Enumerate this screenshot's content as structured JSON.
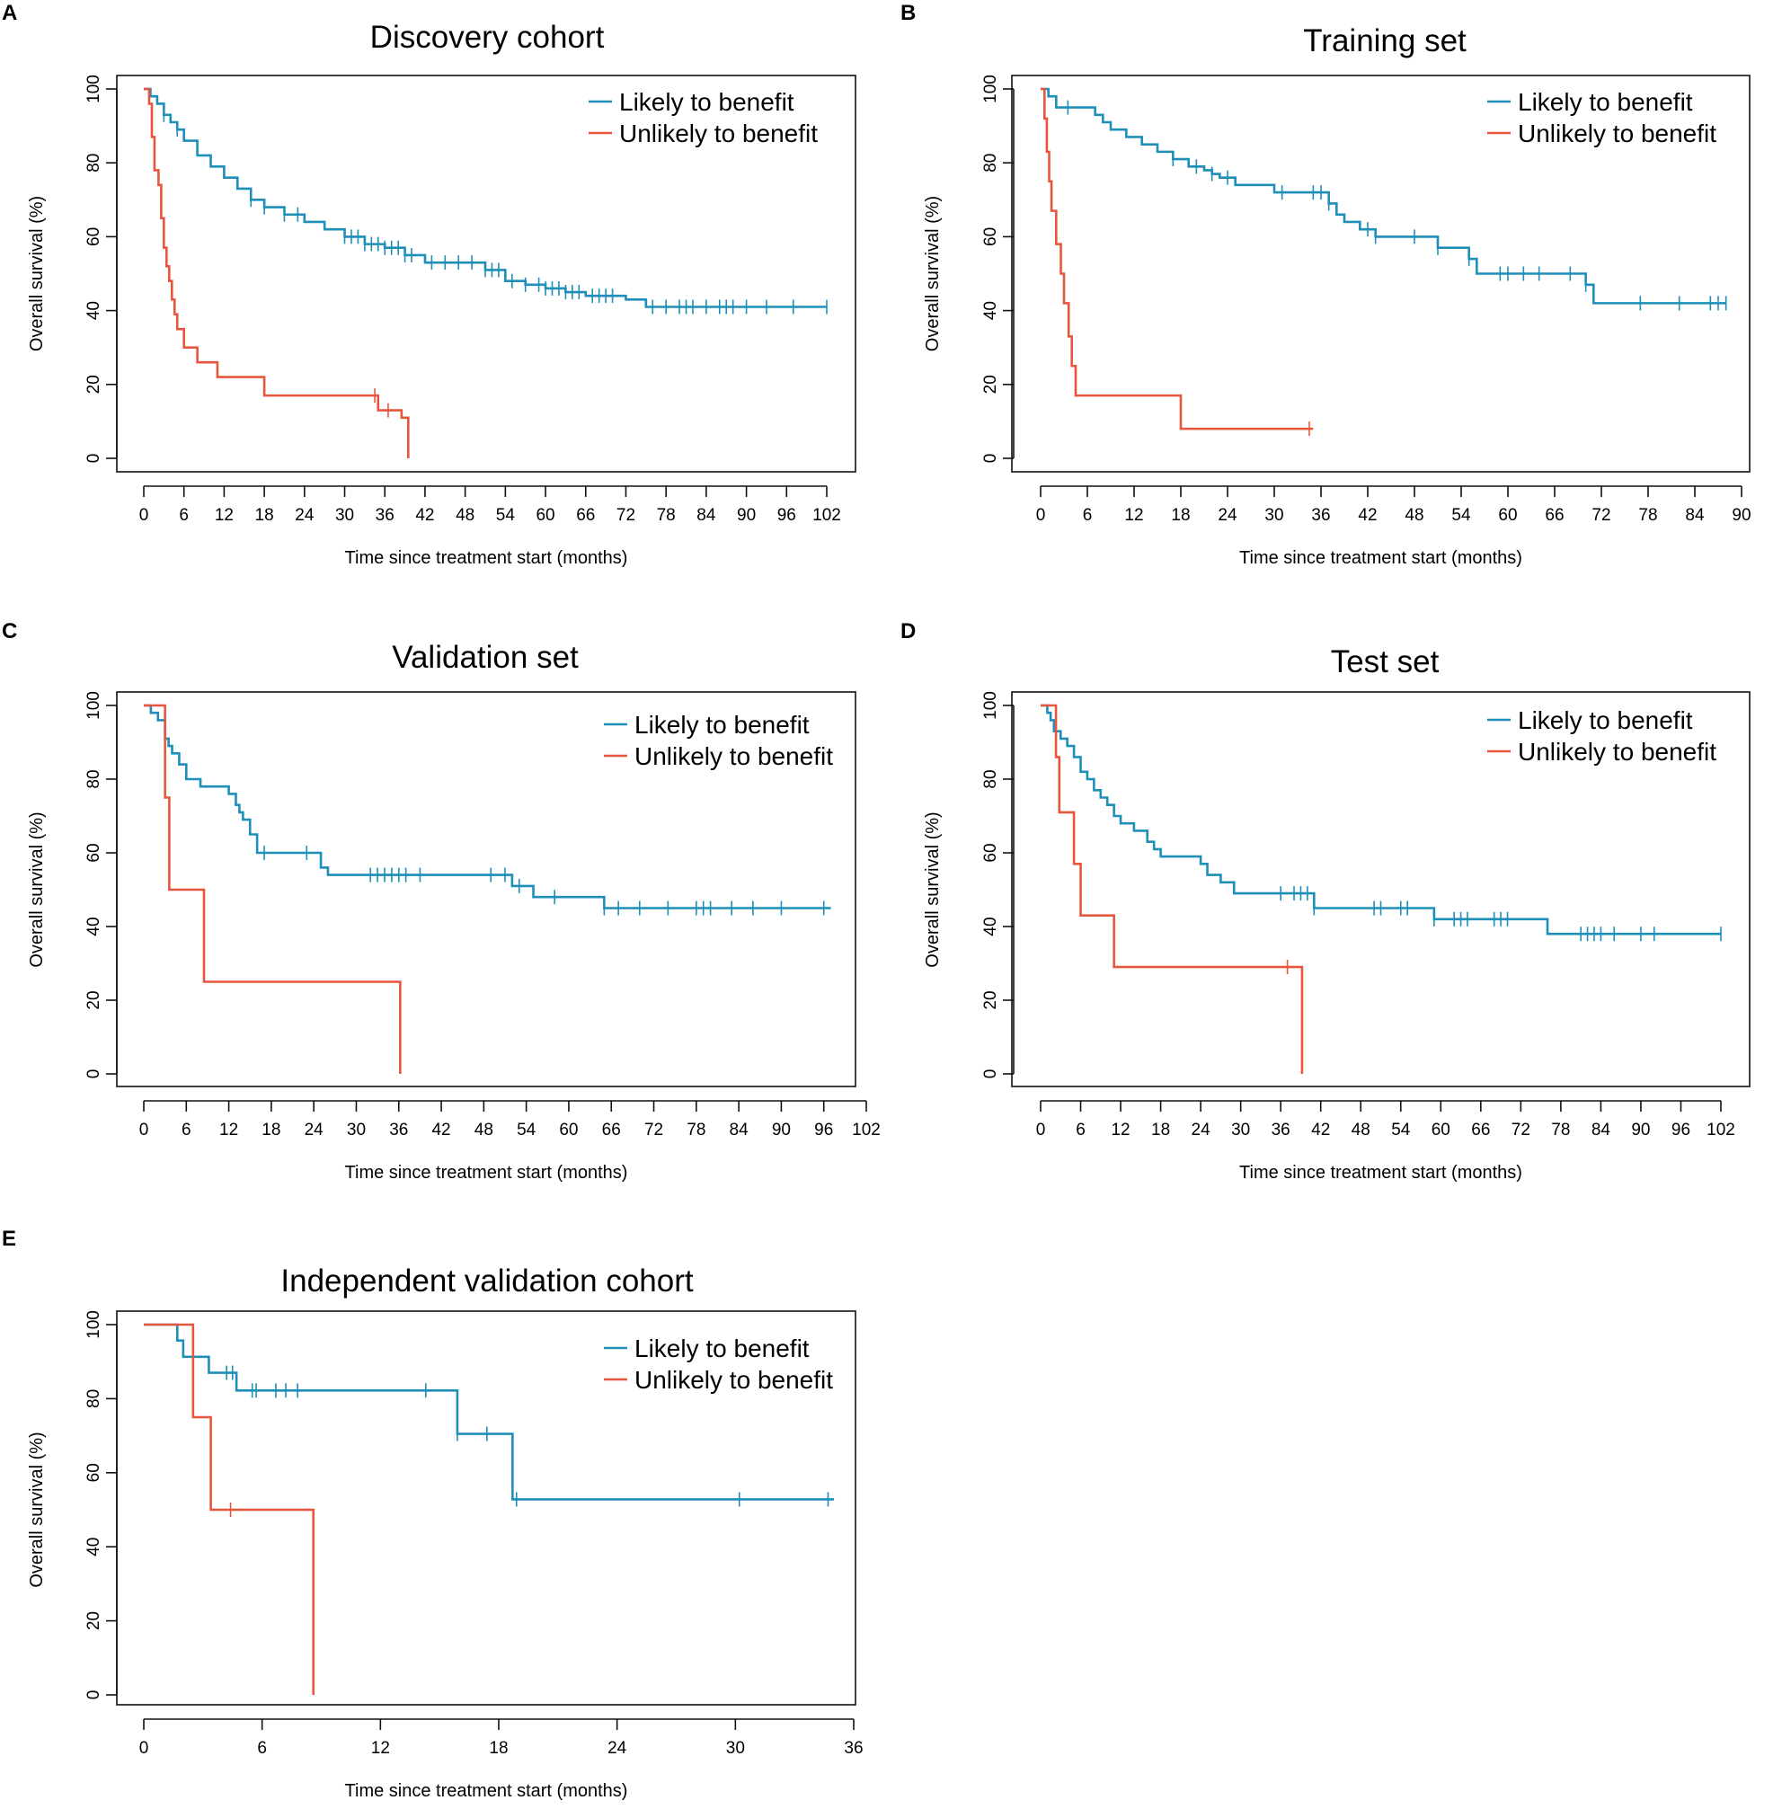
{
  "figure": {
    "series_names": [
      "Likely to benefit",
      "Unlikely to benefit"
    ],
    "colors": {
      "likely": "#1d8fb8",
      "unlikely": "#e8553d",
      "axis": "#111111"
    }
  },
  "chart_data": [
    {
      "type": "line",
      "panel": "A",
      "title": "Discovery cohort",
      "xlabel": "Time since treatment start (months)",
      "ylabel": "Overall survival (%)",
      "xlim": [
        0,
        102
      ],
      "ylim": [
        0,
        100
      ],
      "xticks": [
        0,
        6,
        12,
        18,
        24,
        30,
        36,
        42,
        48,
        54,
        60,
        66,
        72,
        78,
        84,
        90,
        96,
        102
      ],
      "yticks": [
        0,
        20,
        40,
        60,
        80,
        100
      ],
      "legend": "top-right",
      "series": [
        {
          "name": "Likely to benefit",
          "x": [
            0,
            1,
            2,
            3,
            4,
            5,
            6,
            8,
            10,
            12,
            14,
            16,
            18,
            21,
            24,
            27,
            30,
            33,
            36,
            39,
            42,
            45,
            48,
            51,
            54,
            57,
            60,
            63,
            66,
            69,
            72,
            75,
            102
          ],
          "y": [
            100,
            98,
            96,
            93,
            91,
            89,
            86,
            82,
            79,
            76,
            73,
            70,
            68,
            66,
            64,
            62,
            60,
            58,
            57,
            55,
            53,
            53,
            53,
            51,
            48,
            47,
            46,
            45,
            44,
            44,
            43,
            41,
            41
          ],
          "censor_x": [
            3,
            5,
            16,
            18,
            21,
            23,
            30,
            31,
            32,
            33,
            34,
            35,
            36,
            37,
            38,
            39,
            40,
            43,
            45,
            47,
            49,
            51,
            52,
            53,
            55,
            57,
            59,
            60,
            61,
            62,
            63,
            64,
            65,
            67,
            68,
            69,
            70,
            76,
            78,
            80,
            81,
            82,
            84,
            86,
            87,
            88,
            90,
            93,
            97,
            102
          ]
        },
        {
          "name": "Unlikely to benefit",
          "x": [
            0,
            0.8,
            1.2,
            1.6,
            2.2,
            2.6,
            3,
            3.4,
            3.8,
            4.2,
            4.6,
            5,
            6,
            8,
            11,
            18,
            35,
            38.5,
            39.5
          ],
          "y": [
            100,
            96,
            87,
            78,
            74,
            65,
            57,
            52,
            48,
            43,
            39,
            35,
            30,
            26,
            22,
            17,
            13,
            11,
            0
          ],
          "censor_x": [
            34.5,
            36.5
          ]
        }
      ]
    },
    {
      "type": "line",
      "panel": "B",
      "title": "Training set",
      "xlabel": "Time since treatment start (months)",
      "ylabel": "Overall survival (%)",
      "xlim": [
        0,
        90
      ],
      "ylim": [
        0,
        100
      ],
      "xticks": [
        0,
        6,
        12,
        18,
        24,
        30,
        36,
        42,
        48,
        54,
        60,
        66,
        72,
        78,
        84,
        90
      ],
      "yticks": [
        0,
        20,
        40,
        60,
        80,
        100
      ],
      "legend": "top-right",
      "series": [
        {
          "name": "Likely to benefit",
          "x": [
            0,
            1,
            2,
            4,
            6,
            7,
            8,
            9,
            11,
            13,
            15,
            17,
            19,
            21,
            22,
            23,
            25,
            28,
            30,
            37,
            38,
            39,
            41,
            43,
            51,
            55,
            56,
            70,
            71,
            88
          ],
          "y": [
            100,
            98,
            95,
            95,
            95,
            93,
            91,
            89,
            87,
            85,
            83,
            81,
            79,
            78,
            77,
            76,
            74,
            74,
            72,
            69,
            66,
            64,
            62,
            60,
            57,
            54,
            50,
            47,
            42,
            42
          ],
          "censor_x": [
            3.5,
            17,
            20,
            22,
            24,
            31,
            35,
            36,
            37,
            42,
            43,
            48,
            51,
            55,
            59,
            60,
            62,
            64,
            68,
            70,
            77,
            82,
            86,
            87,
            88
          ]
        },
        {
          "name": "Unlikely to benefit",
          "x": [
            0,
            0.5,
            0.8,
            1.1,
            1.4,
            2,
            2.6,
            3,
            3.6,
            4,
            4.5,
            18,
            35
          ],
          "y": [
            100,
            92,
            83,
            75,
            67,
            58,
            50,
            42,
            33,
            25,
            17,
            8,
            8
          ],
          "censor_x": [
            34.5
          ]
        }
      ]
    },
    {
      "type": "line",
      "panel": "C",
      "title": "Validation set",
      "xlabel": "Time since treatment start (months)",
      "ylabel": "Overall survival (%)",
      "xlim": [
        0,
        102
      ],
      "ylim": [
        0,
        100
      ],
      "xticks": [
        0,
        6,
        12,
        18,
        24,
        30,
        36,
        42,
        48,
        54,
        60,
        66,
        72,
        78,
        84,
        90,
        96,
        102
      ],
      "yticks": [
        0,
        20,
        40,
        60,
        80,
        100
      ],
      "legend": "top-right",
      "series": [
        {
          "name": "Likely to benefit",
          "x": [
            0,
            1,
            2,
            3,
            3.5,
            4,
            5,
            6,
            8,
            10,
            12,
            13,
            13.5,
            14,
            15,
            16,
            25,
            26,
            52,
            55,
            65,
            97
          ],
          "y": [
            100,
            98,
            96,
            91,
            89,
            87,
            84,
            80,
            78,
            78,
            76,
            73,
            71,
            69,
            65,
            60,
            56,
            54,
            51,
            48,
            45,
            45
          ],
          "censor_x": [
            17,
            23,
            32,
            33,
            34,
            35,
            36,
            37,
            39,
            49,
            51,
            53,
            58,
            65,
            67,
            70,
            74,
            78,
            79,
            80,
            83,
            86,
            90,
            96
          ]
        },
        {
          "name": "Unlikely to benefit",
          "x": [
            0,
            3,
            3.6,
            8.5,
            36,
            36.2
          ],
          "y": [
            100,
            75,
            50,
            25,
            25,
            0
          ],
          "censor_x": []
        }
      ]
    },
    {
      "type": "line",
      "panel": "D",
      "title": "Test set",
      "xlabel": "Time since treatment start (months)",
      "ylabel": "Overall survival (%)",
      "xlim": [
        0,
        102
      ],
      "ylim": [
        0,
        100
      ],
      "xticks": [
        0,
        6,
        12,
        18,
        24,
        30,
        36,
        42,
        48,
        54,
        60,
        66,
        72,
        78,
        84,
        90,
        96,
        102
      ],
      "yticks": [
        0,
        20,
        40,
        60,
        80,
        100
      ],
      "legend": "top-right",
      "series": [
        {
          "name": "Likely to benefit",
          "x": [
            0,
            1,
            1.5,
            2,
            3,
            4,
            5,
            6,
            7,
            8,
            9,
            10,
            11,
            12,
            14,
            16,
            17,
            18,
            24,
            25,
            27,
            29,
            32,
            41,
            59,
            76,
            102
          ],
          "y": [
            100,
            98,
            96,
            93,
            91,
            89,
            86,
            82,
            80,
            77,
            75,
            73,
            70,
            68,
            66,
            63,
            61,
            59,
            57,
            54,
            52,
            49,
            49,
            45,
            42,
            38,
            38
          ],
          "censor_x": [
            36,
            38,
            39,
            40,
            41,
            50,
            51,
            54,
            55,
            59,
            62,
            63,
            64,
            68,
            69,
            70,
            81,
            82,
            83,
            84,
            86,
            90,
            92,
            102
          ]
        },
        {
          "name": "Unlikely to benefit",
          "x": [
            0,
            2.3,
            2.8,
            5,
            6,
            11,
            39,
            39.2
          ],
          "y": [
            100,
            86,
            71,
            57,
            43,
            29,
            29,
            0
          ],
          "censor_x": [
            37
          ]
        }
      ]
    },
    {
      "type": "line",
      "panel": "E",
      "title": "Independent validation cohort",
      "xlabel": "Time since treatment start (months)",
      "ylabel": "Overall survival (%)",
      "xlim": [
        0,
        36
      ],
      "ylim": [
        0,
        100
      ],
      "xticks": [
        0,
        6,
        12,
        18,
        24,
        30,
        36
      ],
      "yticks": [
        0,
        20,
        40,
        60,
        80,
        100
      ],
      "legend": "top-right",
      "series": [
        {
          "name": "Likely to benefit",
          "x": [
            0,
            1.7,
            2,
            3.3,
            4.7,
            15.9,
            18.7,
            35
          ],
          "y": [
            100,
            95.7,
            91.3,
            87,
            82.2,
            70.5,
            52.8,
            52.8
          ],
          "censor_x": [
            4.2,
            4.5,
            5.5,
            5.7,
            6.7,
            7.2,
            7.8,
            14.3,
            15.9,
            17.4,
            18.9,
            30.2,
            34.7
          ]
        },
        {
          "name": "Unlikely to benefit",
          "x": [
            0,
            2.5,
            3.4,
            8.5,
            8.6
          ],
          "y": [
            100,
            75,
            50,
            50,
            0
          ],
          "censor_x": [
            4.4
          ]
        }
      ]
    }
  ]
}
